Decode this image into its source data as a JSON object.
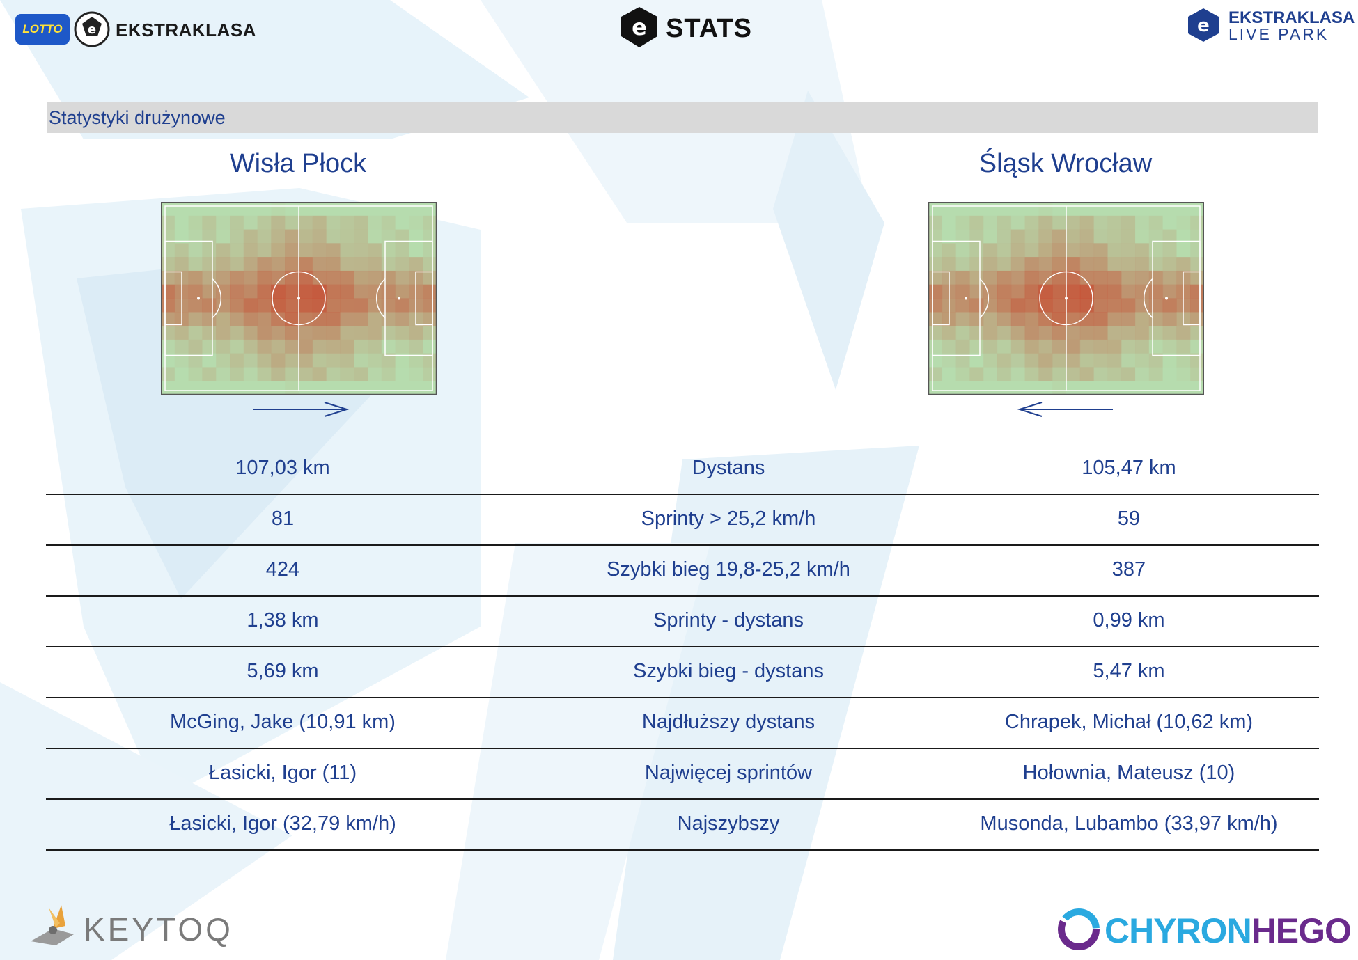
{
  "header": {
    "lotto_badge": "LOTTO",
    "ekstraklasa_label": "EKSTRAKLASA",
    "stats_label": "STATS",
    "livepark_line1": "EKSTRAKLASA",
    "livepark_line2": "LIVE PARK"
  },
  "section_title": "Statystyki drużynowe",
  "teams": {
    "home": "Wisła Płock",
    "away": "Śląsk Wrocław"
  },
  "attack_direction": {
    "home": "right",
    "away": "left"
  },
  "heatmap_colors": {
    "pitch": "#b6dcae",
    "hot": "#c9331c"
  },
  "rows": [
    {
      "label": "Dystans",
      "home": "107,03 km",
      "away": "105,47 km"
    },
    {
      "label": "Sprinty > 25,2 km/h",
      "home": "81",
      "away": "59"
    },
    {
      "label": "Szybki bieg 19,8-25,2 km/h",
      "home": "424",
      "away": "387"
    },
    {
      "label": "Sprinty - dystans",
      "home": "1,38 km",
      "away": "0,99 km"
    },
    {
      "label": "Szybki bieg - dystans",
      "home": "5,69 km",
      "away": "5,47 km"
    },
    {
      "label": "Najdłuższy dystans",
      "home": "McGing, Jake (10,91 km)",
      "away": "Chrapek, Michał (10,62 km)"
    },
    {
      "label": "Najwięcej sprintów",
      "home": "Łasicki, Igor (11)",
      "away": "Hołownia, Mateusz (10)"
    },
    {
      "label": "Najszybszy",
      "home": "Łasicki, Igor (32,79 km/h)",
      "away": "Musonda, Lubambo (33,97 km/h)"
    }
  ],
  "footer": {
    "keytoq": "KEYTOQ",
    "chyron_a": "CHYRON",
    "chyron_b": "HEGO"
  }
}
